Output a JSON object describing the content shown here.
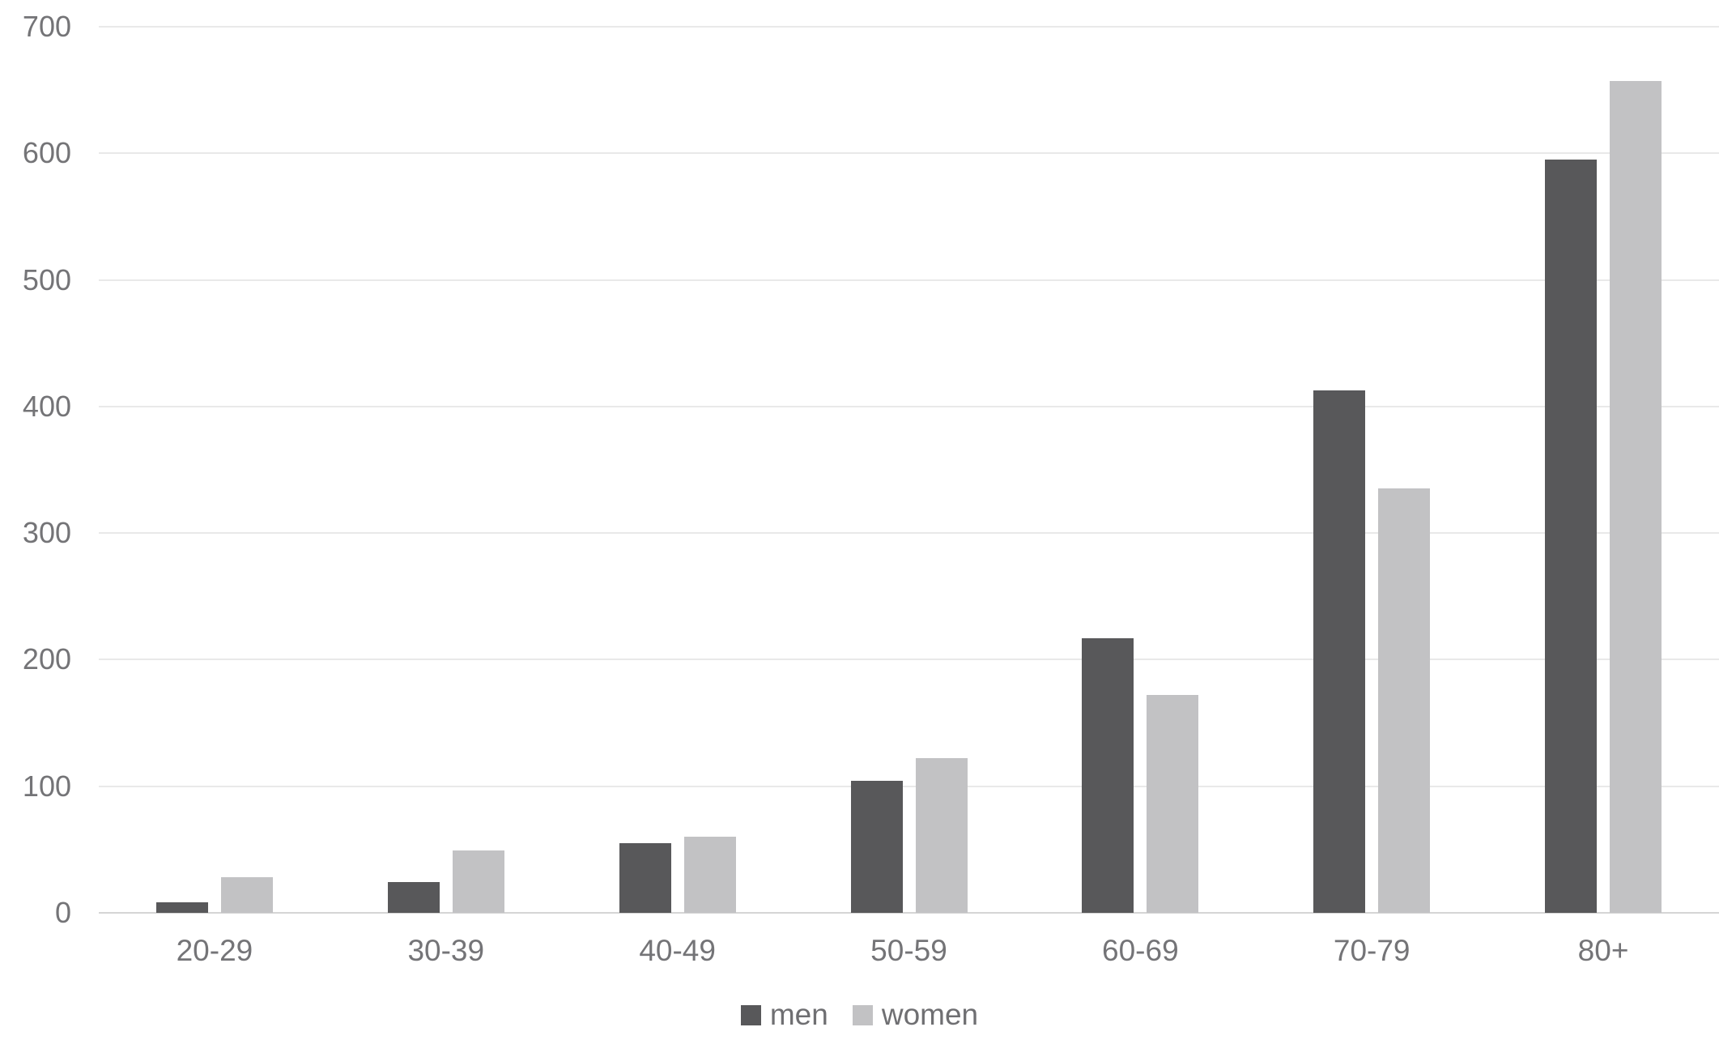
{
  "chart_data": {
    "type": "bar",
    "title": "",
    "xlabel": "",
    "ylabel": "",
    "categories": [
      "20-29",
      "30-39",
      "40-49",
      "50-59",
      "60-69",
      "70-79",
      "80+"
    ],
    "series": [
      {
        "name": "men",
        "color": "#58585a",
        "values": [
          8,
          24,
          55,
          104,
          217,
          413,
          595
        ]
      },
      {
        "name": "women",
        "color": "#c2c2c4",
        "values": [
          28,
          49,
          60,
          122,
          172,
          335,
          657
        ]
      }
    ],
    "ylim": [
      0,
      700
    ],
    "yticks": [
      0,
      100,
      200,
      300,
      400,
      500,
      600,
      700
    ],
    "grid": true,
    "legend_position": "bottom"
  },
  "colors": {
    "grid_line": "#e9e9e9",
    "axis_line": "#d5d5d5",
    "tick_label": "#747477",
    "legend_label": "#6f6f72",
    "background": "#ffffff"
  }
}
